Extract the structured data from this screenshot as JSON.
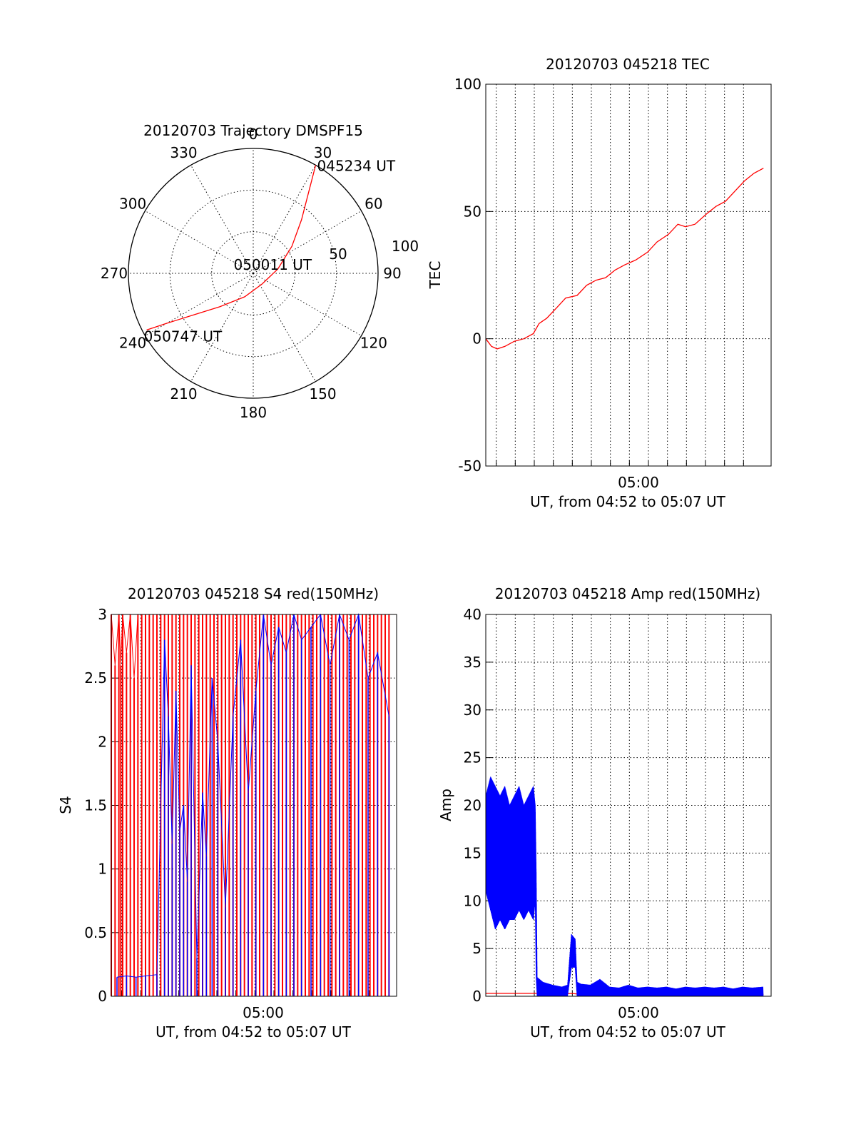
{
  "chart_data": [
    {
      "type": "polar-trajectory",
      "title": "20120703 Trajectory DMSPF15",
      "azimuth_labels": [
        "0",
        "30",
        "60",
        "90",
        "120",
        "150",
        "180",
        "210",
        "240",
        "270",
        "300",
        "330"
      ],
      "radius_labels": [
        "50",
        "100"
      ],
      "grid": true,
      "trajectory_color": "#ff0000",
      "trajectory": [
        {
          "az": 30,
          "el": 0
        },
        {
          "az": 34,
          "el": 18
        },
        {
          "az": 42,
          "el": 38
        },
        {
          "az": 55,
          "el": 56
        },
        {
          "az": 80,
          "el": 72
        },
        {
          "az": 140,
          "el": 80
        },
        {
          "az": 200,
          "el": 72
        },
        {
          "az": 225,
          "el": 56
        },
        {
          "az": 235,
          "el": 38
        },
        {
          "az": 240,
          "el": 18
        },
        {
          "az": 242,
          "el": 3
        }
      ],
      "annotations": [
        {
          "text": "045234 UT",
          "az": 30,
          "el": 0
        },
        {
          "text": "050011 UT",
          "az": 140,
          "el": 80
        },
        {
          "text": "050747 UT",
          "az": 242,
          "el": 3
        }
      ]
    },
    {
      "type": "line",
      "title": "20120703 045218 TEC",
      "ylabel": "TEC",
      "xlabel": "UT, from 04:52 to 05:07 UT",
      "xtick_label": "05:00",
      "ylim": [
        -50,
        100
      ],
      "yticks": [
        "-50",
        "0",
        "50",
        "100"
      ],
      "grid": true,
      "series": [
        {
          "color": "#ff0000",
          "x": [
            0,
            0.3,
            0.6,
            1.0,
            1.5,
            2.0,
            2.5,
            2.8,
            3.2,
            3.7,
            4.2,
            4.8,
            5.3,
            5.8,
            6.3,
            6.8,
            7.3,
            7.9,
            8.5,
            9.0,
            9.6,
            10.1,
            10.5,
            11.0,
            11.6,
            12.1,
            12.6,
            13.1,
            13.6,
            14.1,
            14.6
          ],
          "y": [
            0,
            -3,
            -4,
            -3,
            -1,
            0,
            2,
            6,
            8,
            12,
            16,
            17,
            21,
            23,
            24,
            27,
            29,
            31,
            34,
            38,
            41,
            45,
            44,
            45,
            49,
            52,
            54,
            58,
            62,
            65,
            67
          ]
        }
      ]
    },
    {
      "type": "line",
      "title": "20120703 045218 S4 red(150MHz)",
      "ylabel": "S4",
      "xlabel": "UT, from 04:52 to 05:07 UT",
      "xtick_label": "05:00",
      "ylim": [
        0,
        3
      ],
      "yticks": [
        "0",
        "0.5",
        "1",
        "1.5",
        "2",
        "2.5",
        "3"
      ],
      "grid": true,
      "series": [
        {
          "color": "#ff0000",
          "x": [
            0,
            0.2,
            0.4,
            0.5,
            0.6,
            0.8,
            1.0,
            1.2,
            1.4,
            1.6,
            1.8,
            2.0,
            2.2,
            2.4,
            2.6,
            2.8,
            3.0,
            3.2,
            3.4,
            3.6,
            3.8,
            4.0,
            4.2,
            4.4,
            4.6,
            4.8,
            5.0,
            5.2,
            5.4,
            5.6,
            5.8,
            6.0,
            6.2,
            6.4,
            6.6,
            6.8,
            7.0,
            7.2,
            7.4,
            7.6,
            7.8,
            8.0,
            8.2,
            8.4,
            8.6,
            8.8,
            9.0,
            9.2,
            9.4,
            9.6,
            9.8,
            10.0,
            10.2,
            10.4,
            10.6,
            10.8,
            11.0,
            11.2,
            11.4,
            11.6,
            11.8,
            12.0,
            12.2,
            12.4,
            12.6,
            12.8,
            13.0,
            13.2,
            13.4,
            13.6,
            13.8,
            14.0,
            14.2,
            14.4,
            14.6
          ],
          "y": [
            3,
            2.6,
            3,
            2.6,
            3,
            2.7,
            3,
            2.5,
            3,
            3,
            3,
            3,
            3,
            3,
            3,
            3,
            3,
            3,
            3,
            3,
            3,
            3,
            3,
            3,
            3,
            3,
            3,
            3,
            3,
            3,
            3,
            3,
            3,
            3,
            3,
            3,
            3,
            3,
            3,
            3,
            3,
            3,
            3,
            3,
            3,
            3,
            3,
            3,
            3,
            3,
            3,
            3,
            3,
            3,
            3,
            3,
            3,
            3,
            3,
            3,
            3,
            3,
            3,
            3,
            3,
            3,
            3,
            3,
            3,
            3,
            3,
            3,
            3,
            3,
            3
          ]
        },
        {
          "color": "#0000ff",
          "x": [
            0.3,
            0.8,
            1.3,
            1.8,
            2.4,
            2.8,
            3.0,
            3.2,
            3.4,
            3.6,
            3.8,
            4.0,
            4.2,
            4.5,
            4.8,
            5.0,
            5.3,
            5.6,
            6.0,
            6.4,
            6.8,
            7.2,
            7.6,
            8.0,
            8.4,
            8.8,
            9.2,
            9.6,
            10.0,
            10.5,
            11.0,
            11.5,
            12.0,
            12.5,
            13.0,
            13.5,
            14.0,
            14.6
          ],
          "y": [
            0.15,
            0.16,
            0.15,
            0.16,
            0.17,
            2.8,
            2.2,
            1.2,
            2.4,
            1.3,
            1.5,
            0.9,
            2.6,
            0.3,
            1.6,
            1.1,
            2.5,
            2.0,
            0.7,
            2.2,
            2.8,
            1.6,
            2.4,
            3.0,
            2.6,
            2.9,
            2.7,
            3.0,
            2.8,
            2.9,
            3.0,
            2.6,
            3.0,
            2.8,
            3.0,
            2.5,
            2.7,
            2.2
          ]
        }
      ]
    },
    {
      "type": "line",
      "title": "20120703 045218 Amp red(150MHz)",
      "ylabel": "Amp",
      "xlabel": "UT, from 04:52 to 05:07 UT",
      "xtick_label": "05:00",
      "ylim": [
        0,
        40
      ],
      "yticks": [
        "0",
        "5",
        "10",
        "15",
        "20",
        "25",
        "30",
        "35",
        "40"
      ],
      "grid": true,
      "series": [
        {
          "color": "#ff0000",
          "x": [
            0,
            1,
            2,
            2.7,
            3,
            4,
            4.5,
            5,
            6,
            7,
            7.7,
            8,
            9,
            10,
            11,
            12,
            13,
            14,
            14.6
          ],
          "y": [
            0.3,
            0.3,
            0.3,
            0.3,
            0.2,
            0.2,
            0.3,
            0.2,
            0.2,
            0.2,
            1.0,
            0.2,
            0.2,
            0.2,
            0.2,
            0.2,
            0.2,
            0.2,
            0.2
          ]
        },
        {
          "color": "#0000ff",
          "band": true,
          "x": [
            0,
            0.25,
            0.5,
            0.75,
            1.0,
            1.25,
            1.5,
            1.75,
            2.0,
            2.25,
            2.5,
            2.6,
            2.65,
            2.7,
            3.0,
            3.5,
            4.0,
            4.3,
            4.5,
            4.7,
            4.8,
            5.0,
            5.5,
            6.0,
            6.5,
            7.0,
            7.5,
            8.0,
            8.5,
            9.0,
            9.5,
            10.0,
            10.5,
            11.0,
            11.5,
            12.0,
            12.5,
            13.0,
            13.5,
            14.0,
            14.6
          ],
          "ymin": [
            11,
            9,
            7,
            8,
            7,
            8,
            8,
            9,
            8,
            9,
            8,
            10,
            2,
            0,
            0,
            0,
            0,
            0,
            3,
            3,
            0,
            0,
            0,
            0,
            0,
            0,
            0,
            0,
            0,
            0,
            0,
            0,
            0,
            0,
            0,
            0,
            0,
            0,
            0,
            0,
            0
          ],
          "ymax": [
            21,
            23,
            22,
            21,
            22,
            20,
            21,
            22,
            20,
            21,
            22,
            20,
            13,
            2,
            1.5,
            1.2,
            1.0,
            1.2,
            6.5,
            6,
            1.5,
            1.3,
            1.2,
            1.8,
            1.0,
            0.9,
            1.2,
            0.9,
            1.0,
            0.9,
            1.0,
            0.8,
            1.0,
            0.9,
            1.0,
            0.9,
            1.0,
            0.8,
            1.0,
            0.9,
            1.0
          ]
        }
      ]
    }
  ]
}
